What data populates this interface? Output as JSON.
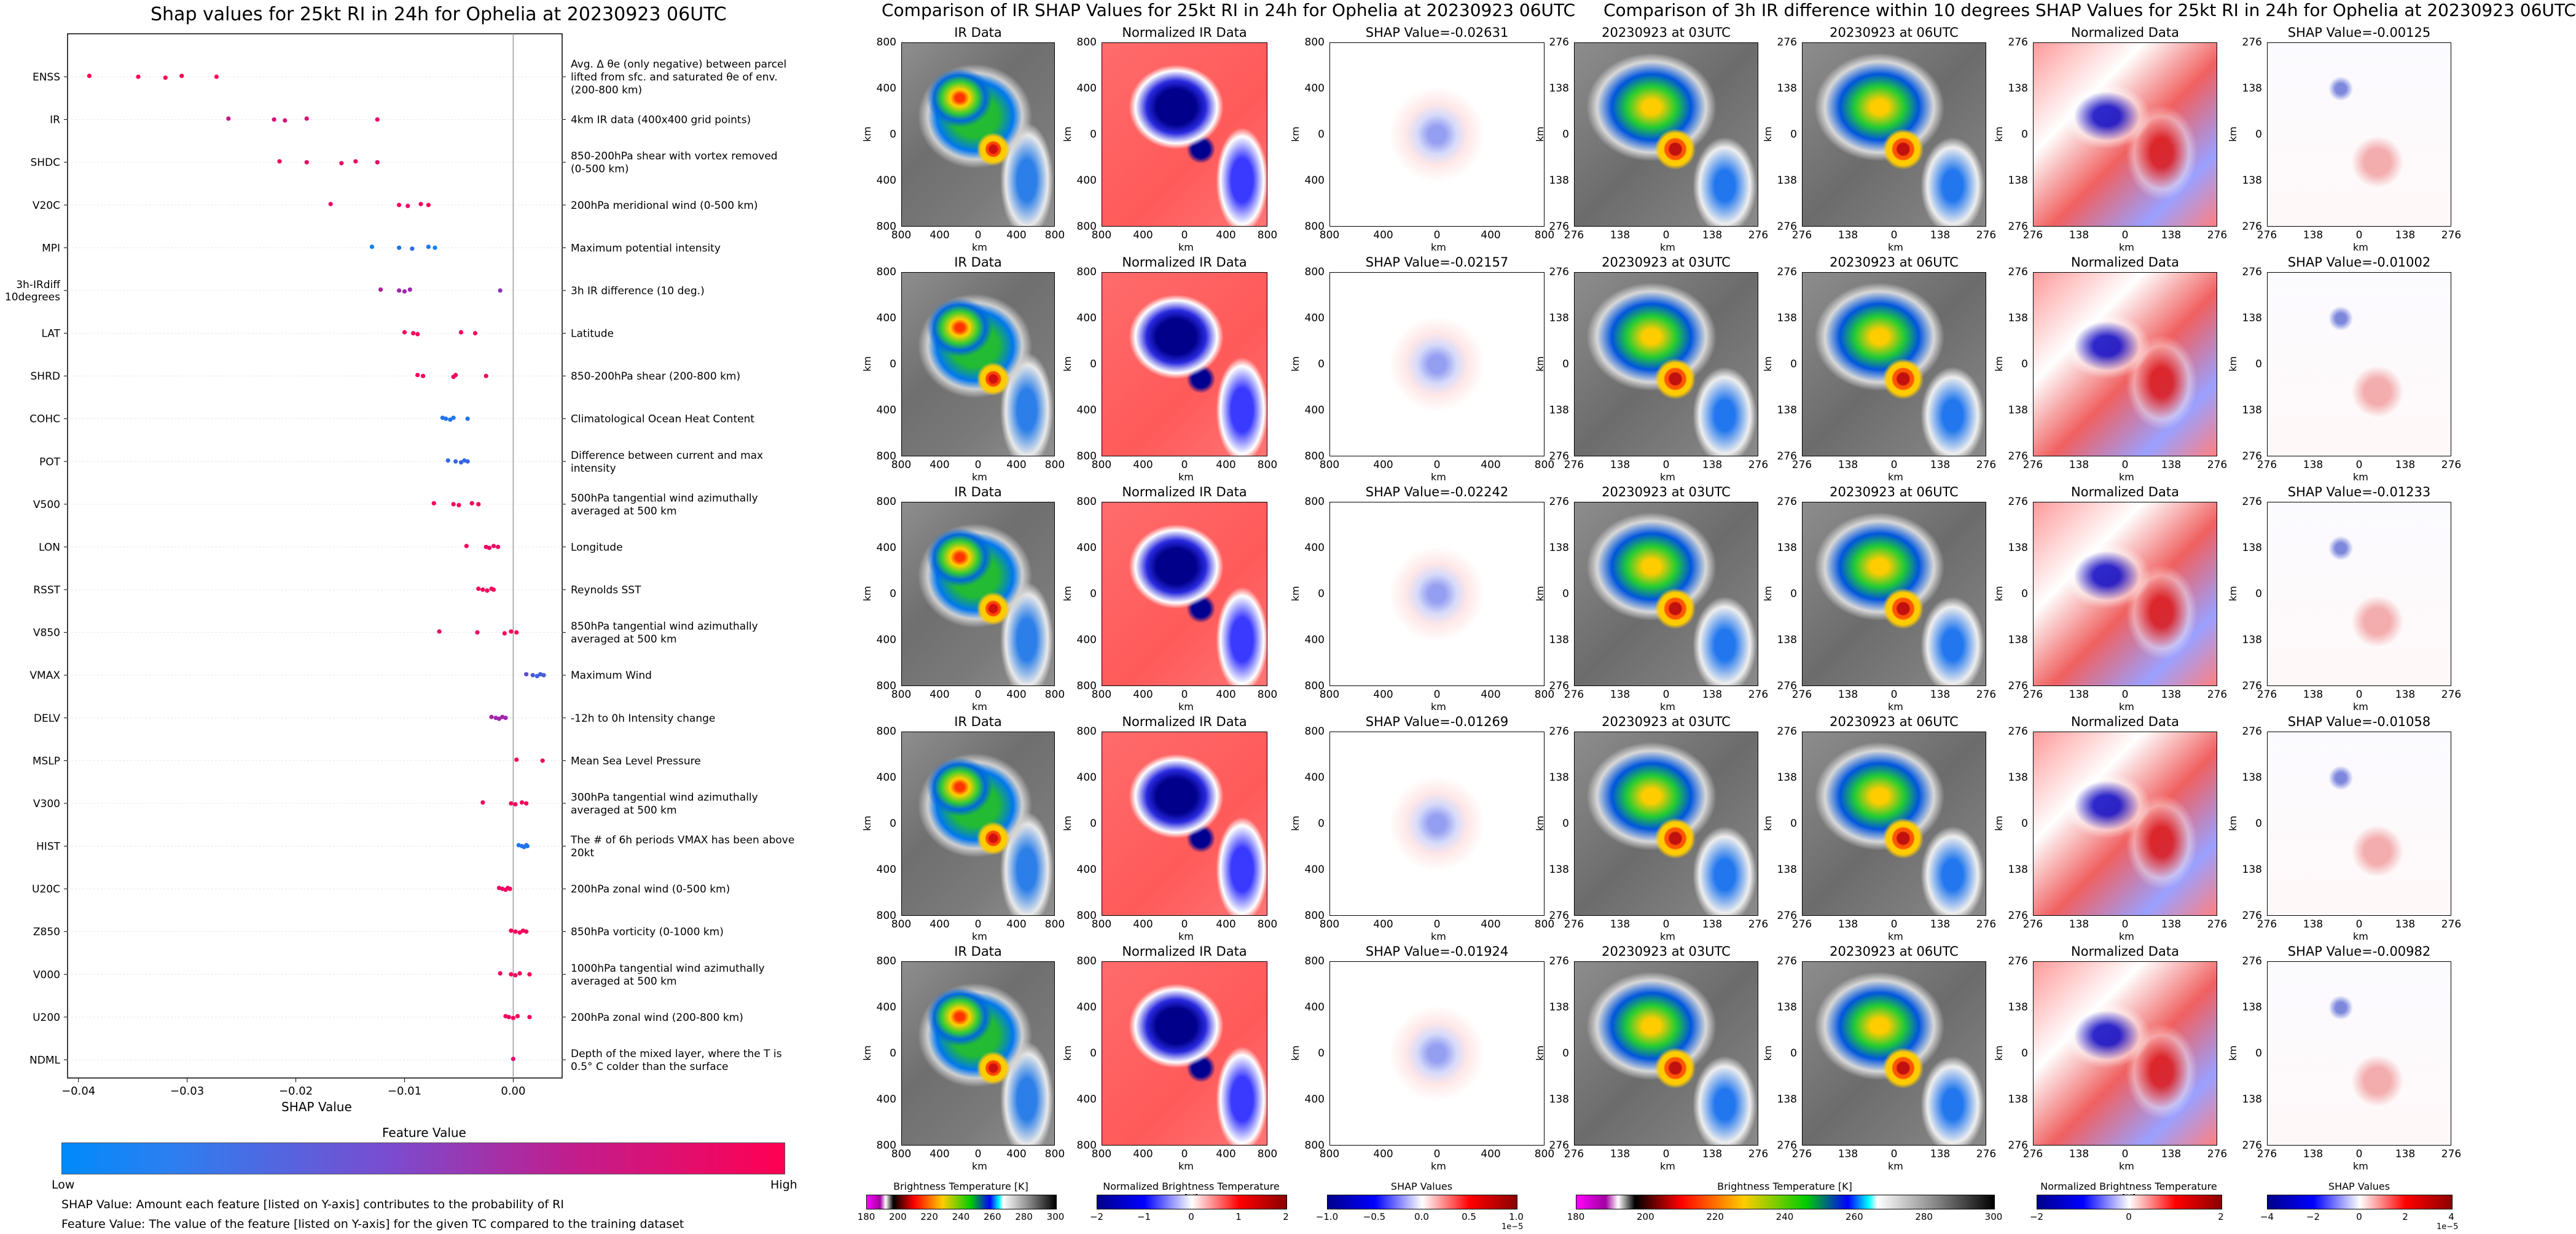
{
  "chart_data": [
    {
      "type": "scatter",
      "title": "Shap values for 25kt RI in 24h for Ophelia at 20230923 06UTC",
      "xlabel": "SHAP Value",
      "xlim": [
        -0.041,
        0.0045
      ],
      "xticks": [
        "−0.04",
        "−0.03",
        "−0.02",
        "−0.01",
        "0.00"
      ],
      "xtick_values": [
        -0.04,
        -0.03,
        -0.02,
        -0.01,
        0.0
      ],
      "colorbar": {
        "label": "Feature Value",
        "low": "Low",
        "high": "High",
        "low_color": "#008afb",
        "mid_color": "#9c27b0",
        "high_color": "#ff0052"
      },
      "notes": [
        "SHAP Value: Amount each feature [listed on Y-axis] contributes to the probability of RI",
        "Feature Value: The value of the feature [listed on Y-axis] for the given TC compared to the training dataset"
      ],
      "features": [
        {
          "name": "ENSS",
          "desc": "Avg. Δ θe (only negative) between parcel lifted from sfc. and saturated θe of env. (200-800 km)",
          "points": [
            [
              -0.039,
              1
            ],
            [
              -0.0345,
              1
            ],
            [
              -0.032,
              1
            ],
            [
              -0.0305,
              1
            ],
            [
              -0.0273,
              1
            ]
          ]
        },
        {
          "name": "IR",
          "desc": "4km IR data (400x400 grid points)",
          "points": [
            [
              -0.0262,
              0.7
            ],
            [
              -0.022,
              0.8
            ],
            [
              -0.021,
              0.75
            ],
            [
              -0.019,
              0.85
            ],
            [
              -0.0125,
              0.9
            ]
          ]
        },
        {
          "name": "SHDC",
          "desc": "850-200hPa shear with vortex removed (0-500 km)",
          "points": [
            [
              -0.0215,
              0.95
            ],
            [
              -0.019,
              0.9
            ],
            [
              -0.0158,
              0.88
            ],
            [
              -0.0145,
              0.92
            ],
            [
              -0.0125,
              0.9
            ]
          ]
        },
        {
          "name": "V20C",
          "desc": "200hPa meridional wind (0-500 km)",
          "points": [
            [
              -0.0168,
              0.9
            ],
            [
              -0.0105,
              0.95
            ],
            [
              -0.0097,
              0.92
            ],
            [
              -0.0085,
              0.95
            ],
            [
              -0.0078,
              0.96
            ]
          ]
        },
        {
          "name": "MPI",
          "desc": "Maximum potential intensity",
          "points": [
            [
              -0.013,
              0.05
            ],
            [
              -0.0105,
              0.1
            ],
            [
              -0.0093,
              0.15
            ],
            [
              -0.0078,
              0.1
            ],
            [
              -0.0072,
              0.05
            ]
          ]
        },
        {
          "name": "3h-IRdiff\n10degrees",
          "desc": "3h IR difference (10 deg.)",
          "points": [
            [
              -0.0122,
              0.6
            ],
            [
              -0.0105,
              0.55
            ],
            [
              -0.01,
              0.5
            ],
            [
              -0.0095,
              0.52
            ],
            [
              -0.0012,
              0.45
            ]
          ]
        },
        {
          "name": "LAT",
          "desc": "Latitude",
          "points": [
            [
              -0.01,
              0.95
            ],
            [
              -0.0092,
              0.96
            ],
            [
              -0.0088,
              0.94
            ],
            [
              -0.0048,
              0.95
            ],
            [
              -0.0035,
              0.95
            ]
          ]
        },
        {
          "name": "SHRD",
          "desc": "850-200hPa shear (200-800 km)",
          "points": [
            [
              -0.0088,
              0.95
            ],
            [
              -0.0083,
              0.95
            ],
            [
              -0.0055,
              0.92
            ],
            [
              -0.0053,
              0.94
            ],
            [
              -0.0025,
              0.95
            ]
          ]
        },
        {
          "name": "COHC",
          "desc": "Climatological Ocean Heat Content",
          "points": [
            [
              -0.0065,
              0.1
            ],
            [
              -0.0062,
              0.12
            ],
            [
              -0.0058,
              0.1
            ],
            [
              -0.0055,
              0.08
            ],
            [
              -0.0042,
              0.1
            ]
          ]
        },
        {
          "name": "POT",
          "desc": "Difference between current and max intensity",
          "points": [
            [
              -0.006,
              0.15
            ],
            [
              -0.0053,
              0.18
            ],
            [
              -0.0048,
              0.2
            ],
            [
              -0.0045,
              0.15
            ],
            [
              -0.0042,
              0.18
            ]
          ]
        },
        {
          "name": "V500",
          "desc": "500hPa tangential wind azimuthally averaged at 500 km",
          "points": [
            [
              -0.0073,
              0.95
            ],
            [
              -0.0055,
              0.93
            ],
            [
              -0.005,
              0.95
            ],
            [
              -0.0038,
              0.94
            ],
            [
              -0.0032,
              0.95
            ]
          ]
        },
        {
          "name": "LON",
          "desc": "Longitude",
          "points": [
            [
              -0.0043,
              0.95
            ],
            [
              -0.0025,
              0.9
            ],
            [
              -0.0022,
              0.92
            ],
            [
              -0.0018,
              0.9
            ],
            [
              -0.0014,
              0.92
            ]
          ]
        },
        {
          "name": "RSST",
          "desc": "Reynolds SST",
          "points": [
            [
              -0.0032,
              0.95
            ],
            [
              -0.0028,
              0.93
            ],
            [
              -0.0024,
              0.95
            ],
            [
              -0.002,
              0.94
            ],
            [
              -0.0018,
              0.96
            ]
          ]
        },
        {
          "name": "V850",
          "desc": "850hPa tangential wind azimuthally averaged at 500 km",
          "points": [
            [
              -0.0068,
              0.9
            ],
            [
              -0.0033,
              0.92
            ],
            [
              -0.0008,
              0.95
            ],
            [
              -0.0002,
              0.96
            ],
            [
              0.0003,
              0.95
            ]
          ]
        },
        {
          "name": "VMAX",
          "desc": "Maximum Wind",
          "points": [
            [
              0.0012,
              0.3
            ],
            [
              0.0018,
              0.25
            ],
            [
              0.0022,
              0.2
            ],
            [
              0.0025,
              0.22
            ],
            [
              0.0028,
              0.25
            ]
          ]
        },
        {
          "name": "DELV",
          "desc": "-12h to 0h Intensity change",
          "points": [
            [
              -0.002,
              0.55
            ],
            [
              -0.0016,
              0.5
            ],
            [
              -0.0013,
              0.52
            ],
            [
              -0.001,
              0.55
            ],
            [
              -0.0007,
              0.5
            ]
          ]
        },
        {
          "name": "MSLP",
          "desc": "Mean Sea Level Pressure",
          "points": [
            [
              0.0003,
              0.95
            ],
            [
              0.0027,
              0.94
            ]
          ]
        },
        {
          "name": "V300",
          "desc": "300hPa tangential wind azimuthally averaged at 500 km",
          "points": [
            [
              -0.0028,
              0.95
            ],
            [
              -0.0002,
              0.95
            ],
            [
              0.0002,
              0.95
            ],
            [
              0.0008,
              0.94
            ],
            [
              0.0012,
              0.95
            ]
          ]
        },
        {
          "name": "HIST",
          "desc": "The # of 6h periods VMAX has been above 20kt",
          "points": [
            [
              0.0005,
              0.1
            ],
            [
              0.0008,
              0.12
            ],
            [
              0.001,
              0.1
            ],
            [
              0.0012,
              0.12
            ],
            [
              0.0013,
              0.1
            ]
          ]
        },
        {
          "name": "U20C",
          "desc": "200hPa zonal wind (0-500 km)",
          "points": [
            [
              -0.0013,
              0.92
            ],
            [
              -0.001,
              0.9
            ],
            [
              -0.0007,
              0.92
            ],
            [
              -0.0005,
              0.95
            ],
            [
              -0.0003,
              0.94
            ]
          ]
        },
        {
          "name": "Z850",
          "desc": "850hPa vorticity (0-1000 km)",
          "points": [
            [
              -0.0002,
              0.95
            ],
            [
              0.0002,
              0.94
            ],
            [
              0.0006,
              0.95
            ],
            [
              0.0009,
              0.94
            ],
            [
              0.0012,
              0.95
            ]
          ]
        },
        {
          "name": "V000",
          "desc": "1000hPa tangential wind azimuthally averaged at 500 km",
          "points": [
            [
              -0.0012,
              0.92
            ],
            [
              -0.0002,
              0.95
            ],
            [
              0.0002,
              0.9
            ],
            [
              0.0006,
              0.94
            ],
            [
              0.0015,
              0.95
            ]
          ]
        },
        {
          "name": "U200",
          "desc": "200hPa zonal wind (200-800 km)",
          "points": [
            [
              -0.0007,
              0.9
            ],
            [
              -0.0004,
              0.92
            ],
            [
              0.0,
              0.95
            ],
            [
              0.0004,
              0.94
            ],
            [
              0.0015,
              0.95
            ]
          ]
        },
        {
          "name": "NDML",
          "desc": "Depth of the mixed layer, where the T is 0.5° C colder than the surface",
          "points": [
            [
              0.0,
              0.9
            ]
          ]
        }
      ]
    }
  ],
  "panels_ir": {
    "title": "Comparison of IR SHAP Values for 25kt RI in 24h for Ophelia at 20230923 06UTC",
    "col_titles": [
      "IR Data",
      "Normalized IR Data"
    ],
    "shap_titles": [
      "SHAP Value=-0.02631",
      "SHAP Value=-0.02157",
      "SHAP Value=-0.02242",
      "SHAP Value=-0.01269",
      "SHAP Value=-0.01924"
    ],
    "yticks": [
      "800",
      "400",
      "0",
      "400",
      "800"
    ],
    "xticks": [
      "800",
      "400",
      "0",
      "400",
      "800"
    ],
    "axis_unit": "km",
    "colorbars": [
      {
        "label": "Brightness Temperature [K]",
        "ticks": [
          "180",
          "200",
          "220",
          "240",
          "260",
          "280",
          "300"
        ]
      },
      {
        "label": "Normalized Brightness Temperature [K]",
        "ticks": [
          "−2",
          "−1",
          "0",
          "1",
          "2"
        ]
      },
      {
        "label": "SHAP Values",
        "ticks": [
          "−1.0",
          "−0.5",
          "0.0",
          "0.5",
          "1.0"
        ],
        "offset": "1e−5"
      }
    ]
  },
  "panels_diff": {
    "title": "Comparison of 3h IR difference within 10 degrees SHAP Values for 25kt RI in 24h for Ophelia at 20230923 06UTC",
    "col_titles": [
      "20230923 at 03UTC",
      "20230923 at 06UTC",
      "Normalized Data"
    ],
    "shap_titles": [
      "SHAP Value=-0.00125",
      "SHAP Value=-0.01002",
      "SHAP Value=-0.01233",
      "SHAP Value=-0.01058",
      "SHAP Value=-0.00982"
    ],
    "yticks": [
      "276",
      "138",
      "0",
      "138",
      "276"
    ],
    "xticks": [
      "276",
      "138",
      "0",
      "138",
      "276"
    ],
    "axis_unit": "km",
    "colorbars": [
      {
        "label": "Brightness Temperature [K]",
        "ticks": [
          "180",
          "200",
          "220",
          "240",
          "260",
          "280",
          "300"
        ]
      },
      {
        "label": "Normalized Brightness Temperature [K]",
        "ticks": [
          "−2",
          "0",
          "2"
        ]
      },
      {
        "label": "SHAP Values",
        "ticks": [
          "−4",
          "−2",
          "0",
          "2",
          "4"
        ],
        "offset": "1e−5"
      }
    ]
  },
  "colors": {
    "seismic_neg": "#00008b",
    "seismic_pos": "#8b0000"
  }
}
